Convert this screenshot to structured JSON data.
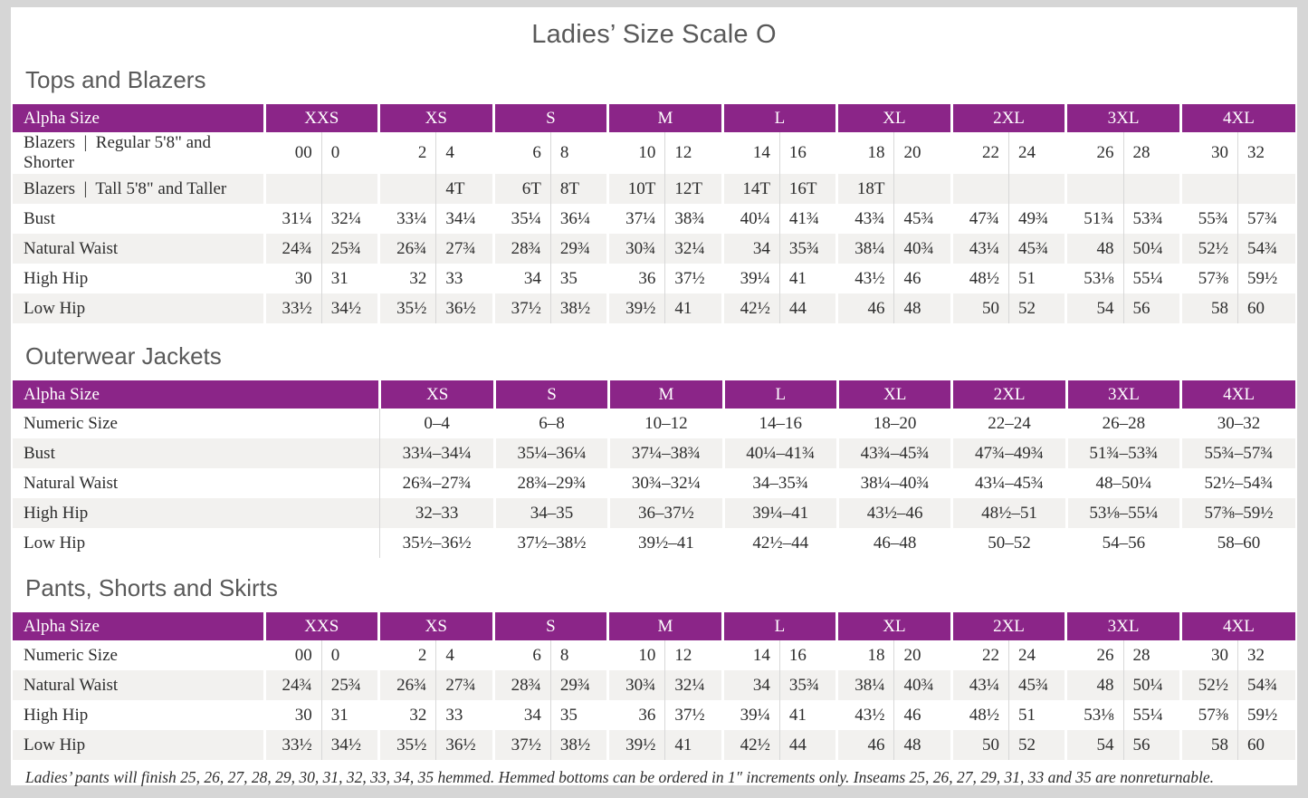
{
  "title": "Ladies’ Size Scale O",
  "footnote": "Ladies’ pants will finish 25, 26, 27, 28, 29, 30, 31, 32, 33, 34, 35 hemmed. Hemmed bottoms can be ordered in 1″ increments only. Inseams 25, 26, 27, 29, 31, 33 and 35 are nonreturnable.",
  "colors": {
    "header_purple": "#8B2588",
    "row_stripe": "#F2F1EF",
    "divider": "#D8D8D8",
    "heading_text": "#595959",
    "table_text": "#2D2D2D",
    "page_background": "#FFFFFF",
    "surround_gray": "#D6D6D6"
  },
  "tables": [
    {
      "id": "tops-and-blazers",
      "heading": "Tops and Blazers",
      "label_header": "Alpha Size",
      "sub_columns": 2,
      "sizes": [
        "XXS",
        "XS",
        "S",
        "M",
        "L",
        "XL",
        "2XL",
        "3XL",
        "4XL"
      ],
      "rows": [
        {
          "label": "Blazers  |  Regular 5'8\" and Shorter",
          "cells": [
            [
              "00",
              "0"
            ],
            [
              "2",
              "4"
            ],
            [
              "6",
              "8"
            ],
            [
              "10",
              "12"
            ],
            [
              "14",
              "16"
            ],
            [
              "18",
              "20"
            ],
            [
              "22",
              "24"
            ],
            [
              "26",
              "28"
            ],
            [
              "30",
              "32"
            ]
          ]
        },
        {
          "label": "Blazers  |  Tall 5'8\" and Taller",
          "cells": [
            [
              "",
              ""
            ],
            [
              "",
              "4T"
            ],
            [
              "6T",
              "8T"
            ],
            [
              "10T",
              "12T"
            ],
            [
              "14T",
              "16T"
            ],
            [
              "18T",
              ""
            ],
            [
              "",
              ""
            ],
            [
              "",
              ""
            ],
            [
              "",
              ""
            ]
          ]
        },
        {
          "label": "Bust",
          "cells": [
            [
              "31¼",
              "32¼"
            ],
            [
              "33¼",
              "34¼"
            ],
            [
              "35¼",
              "36¼"
            ],
            [
              "37¼",
              "38¾"
            ],
            [
              "40¼",
              "41¾"
            ],
            [
              "43¾",
              "45¾"
            ],
            [
              "47¾",
              "49¾"
            ],
            [
              "51¾",
              "53¾"
            ],
            [
              "55¾",
              "57¾"
            ]
          ]
        },
        {
          "label": "Natural Waist",
          "cells": [
            [
              "24¾",
              "25¾"
            ],
            [
              "26¾",
              "27¾"
            ],
            [
              "28¾",
              "29¾"
            ],
            [
              "30¾",
              "32¼"
            ],
            [
              "34",
              "35¾"
            ],
            [
              "38¼",
              "40¾"
            ],
            [
              "43¼",
              "45¾"
            ],
            [
              "48",
              "50¼"
            ],
            [
              "52½",
              "54¾"
            ]
          ]
        },
        {
          "label": "High Hip",
          "cells": [
            [
              "30",
              "31"
            ],
            [
              "32",
              "33"
            ],
            [
              "34",
              "35"
            ],
            [
              "36",
              "37½"
            ],
            [
              "39¼",
              "41"
            ],
            [
              "43½",
              "46"
            ],
            [
              "48½",
              "51"
            ],
            [
              "53⅛",
              "55¼"
            ],
            [
              "57⅜",
              "59½"
            ]
          ]
        },
        {
          "label": "Low Hip",
          "cells": [
            [
              "33½",
              "34½"
            ],
            [
              "35½",
              "36½"
            ],
            [
              "37½",
              "38½"
            ],
            [
              "39½",
              "41"
            ],
            [
              "42½",
              "44"
            ],
            [
              "46",
              "48"
            ],
            [
              "50",
              "52"
            ],
            [
              "54",
              "56"
            ],
            [
              "58",
              "60"
            ]
          ]
        }
      ]
    },
    {
      "id": "outerwear-jackets",
      "heading": "Outerwear Jackets",
      "label_header": "Alpha Size",
      "sub_columns": 1,
      "sizes": [
        "XS",
        "S",
        "M",
        "L",
        "XL",
        "2XL",
        "3XL",
        "4XL"
      ],
      "rows": [
        {
          "label": "Numeric Size",
          "cells": [
            "0–4",
            "6–8",
            "10–12",
            "14–16",
            "18–20",
            "22–24",
            "26–28",
            "30–32"
          ]
        },
        {
          "label": "Bust",
          "cells": [
            "33¼–34¼",
            "35¼–36¼",
            "37¼–38¾",
            "40¼–41¾",
            "43¾–45¾",
            "47¾–49¾",
            "51¾–53¾",
            "55¾–57¾"
          ]
        },
        {
          "label": "Natural Waist",
          "cells": [
            "26¾–27¾",
            "28¾–29¾",
            "30¾–32¼",
            "34–35¾",
            "38¼–40¾",
            "43¼–45¾",
            "48–50¼",
            "52½–54¾"
          ]
        },
        {
          "label": "High Hip",
          "cells": [
            "32–33",
            "34–35",
            "36–37½",
            "39¼–41",
            "43½–46",
            "48½–51",
            "53⅛–55¼",
            "57⅜–59½"
          ]
        },
        {
          "label": "Low Hip",
          "cells": [
            "35½–36½",
            "37½–38½",
            "39½–41",
            "42½–44",
            "46–48",
            "50–52",
            "54–56",
            "58–60"
          ]
        }
      ]
    },
    {
      "id": "pants-shorts-and-skirts",
      "heading": "Pants, Shorts and Skirts",
      "label_header": "Alpha Size",
      "sub_columns": 2,
      "sizes": [
        "XXS",
        "XS",
        "S",
        "M",
        "L",
        "XL",
        "2XL",
        "3XL",
        "4XL"
      ],
      "rows": [
        {
          "label": "Numeric Size",
          "cells": [
            [
              "00",
              "0"
            ],
            [
              "2",
              "4"
            ],
            [
              "6",
              "8"
            ],
            [
              "10",
              "12"
            ],
            [
              "14",
              "16"
            ],
            [
              "18",
              "20"
            ],
            [
              "22",
              "24"
            ],
            [
              "26",
              "28"
            ],
            [
              "30",
              "32"
            ]
          ]
        },
        {
          "label": "Natural Waist",
          "cells": [
            [
              "24¾",
              "25¾"
            ],
            [
              "26¾",
              "27¾"
            ],
            [
              "28¾",
              "29¾"
            ],
            [
              "30¾",
              "32¼"
            ],
            [
              "34",
              "35¾"
            ],
            [
              "38¼",
              "40¾"
            ],
            [
              "43¼",
              "45¾"
            ],
            [
              "48",
              "50¼"
            ],
            [
              "52½",
              "54¾"
            ]
          ]
        },
        {
          "label": "High Hip",
          "cells": [
            [
              "30",
              "31"
            ],
            [
              "32",
              "33"
            ],
            [
              "34",
              "35"
            ],
            [
              "36",
              "37½"
            ],
            [
              "39¼",
              "41"
            ],
            [
              "43½",
              "46"
            ],
            [
              "48½",
              "51"
            ],
            [
              "53⅛",
              "55¼"
            ],
            [
              "57⅜",
              "59½"
            ]
          ]
        },
        {
          "label": "Low Hip",
          "cells": [
            [
              "33½",
              "34½"
            ],
            [
              "35½",
              "36½"
            ],
            [
              "37½",
              "38½"
            ],
            [
              "39½",
              "41"
            ],
            [
              "42½",
              "44"
            ],
            [
              "46",
              "48"
            ],
            [
              "50",
              "52"
            ],
            [
              "54",
              "56"
            ],
            [
              "58",
              "60"
            ]
          ]
        }
      ]
    }
  ]
}
